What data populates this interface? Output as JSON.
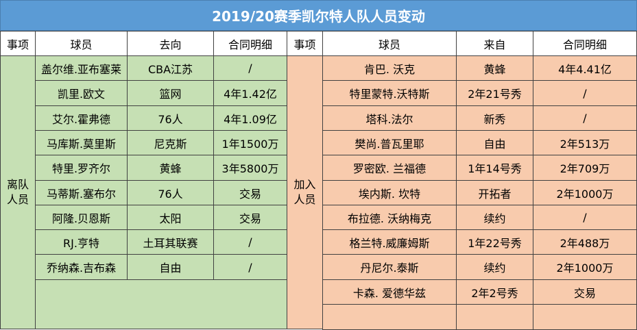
{
  "title": "2019/20赛季凯尔特人队人员变动",
  "headers": {
    "left": [
      "事项",
      "球员",
      "去向",
      "合同明细"
    ],
    "right": [
      "事项",
      "球员",
      "来自",
      "合同明细"
    ]
  },
  "left_group": [
    "离队",
    "人员"
  ],
  "right_group": [
    "加入",
    "人员"
  ],
  "departures": [
    {
      "player": "盖尔维.亚布塞莱",
      "dest": "CBA江苏",
      "contract": "/"
    },
    {
      "player": "凯里.欧文",
      "dest": "篮网",
      "contract": "4年1.42亿"
    },
    {
      "player": "艾尔.霍弗德",
      "dest": "76人",
      "contract": "4年1.09亿"
    },
    {
      "player": "马库斯.莫里斯",
      "dest": "尼克斯",
      "contract": "1年1500万"
    },
    {
      "player": "特里.罗齐尔",
      "dest": "黄蜂",
      "contract": "3年5800万"
    },
    {
      "player": "马蒂斯.塞布尔",
      "dest": "76人",
      "contract": "交易"
    },
    {
      "player": "阿隆.贝恩斯",
      "dest": "太阳",
      "contract": "交易"
    },
    {
      "player": "RJ.亨特",
      "dest": "土耳其联赛",
      "contract": "/"
    },
    {
      "player": "乔纳森.吉布森",
      "dest": "自由",
      "contract": "/"
    }
  ],
  "arrivals": [
    {
      "player": "肯巴. 沃克",
      "from": "黄蜂",
      "contract": "4年4.41亿"
    },
    {
      "player": "特里蒙特.沃特斯",
      "from": "2年21号秀",
      "contract": "/"
    },
    {
      "player": "塔科.法尔",
      "from": "新秀",
      "contract": "/"
    },
    {
      "player": "樊尚.普瓦里耶",
      "from": "自由",
      "contract": "2年513万"
    },
    {
      "player": "罗密欧. 兰福德",
      "from": "1年14号秀",
      "contract": "2年709万"
    },
    {
      "player": "埃内斯. 坎特",
      "from": "开拓者",
      "contract": "2年1000万"
    },
    {
      "player": "布拉德. 沃纳梅克",
      "from": "续约",
      "contract": "/"
    },
    {
      "player": "格兰特.威廉姆斯",
      "from": "1年22号秀",
      "contract": "2年488万"
    },
    {
      "player": "丹尼尔.泰斯",
      "from": "续约",
      "contract": "2年1000万"
    },
    {
      "player": "卡森. 爱德华兹",
      "from": "2年2号秀",
      "contract": "交易"
    }
  ]
}
